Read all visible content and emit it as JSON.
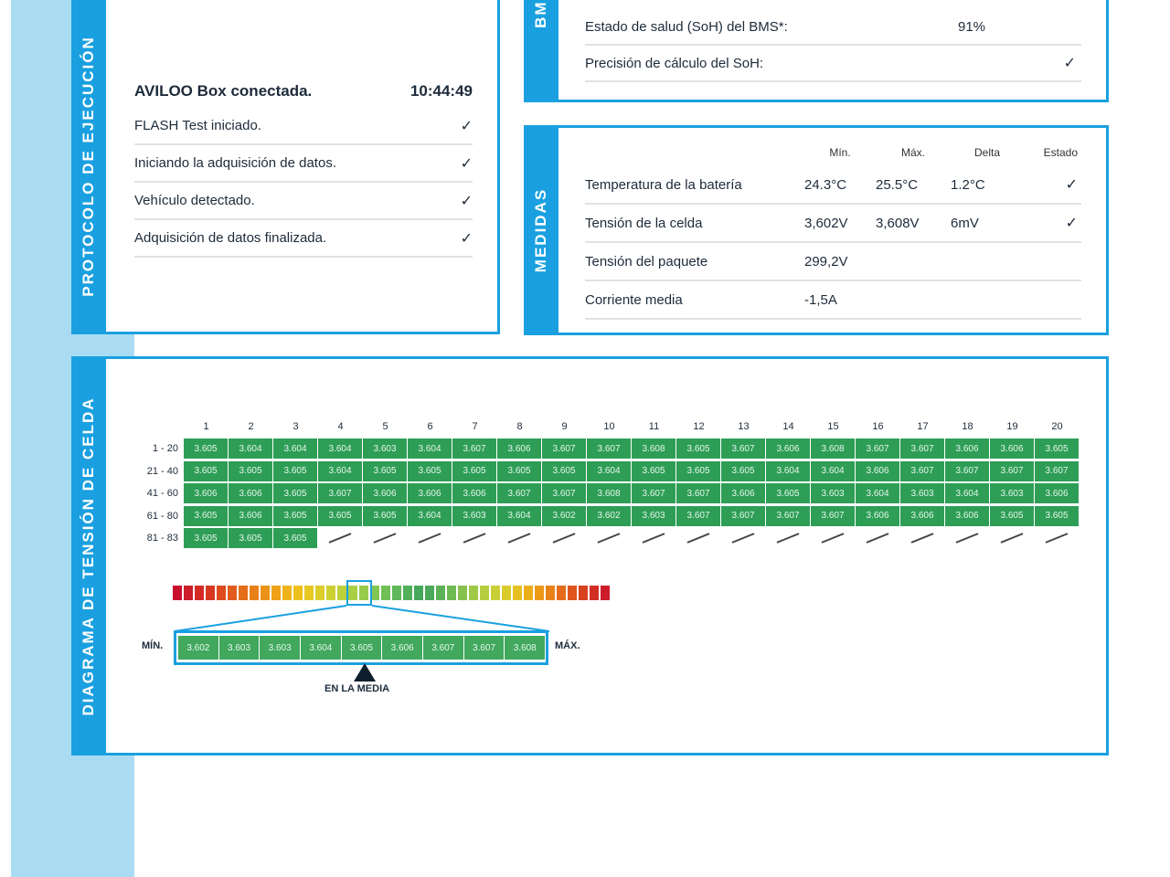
{
  "protocol": {
    "tab_label": "PROTOCOLO DE EJECUCIÓN",
    "header_label": "AVILOO Box conectada.",
    "header_time": "10:44:49",
    "steps": [
      {
        "label": "FLASH Test iniciado."
      },
      {
        "label": "Iniciando la adquisición de datos."
      },
      {
        "label": "Vehículo detectado."
      },
      {
        "label": "Adquisición de datos finalizada."
      }
    ]
  },
  "bms": {
    "tab_label": "BMS",
    "rows": [
      {
        "label": "Estado de salud (SoH) del BMS*:",
        "value": "91%",
        "check": false
      },
      {
        "label": "Precisión de cálculo del SoH:",
        "value": "",
        "check": true
      }
    ]
  },
  "medidas": {
    "tab_label": "MEDIDAS",
    "headers": {
      "min": "Mín.",
      "max": "Máx.",
      "delta": "Delta",
      "estado": "Estado"
    },
    "rows": [
      {
        "label": "Temperatura de la batería",
        "min": "24.3°C",
        "max": "25.5°C",
        "delta": "1.2°C",
        "check": true
      },
      {
        "label": "Tensión de la celda",
        "min": "3,602V",
        "max": "3,608V",
        "delta": "6mV",
        "check": true
      },
      {
        "label": "Tensión del paquete",
        "min": "299,2V",
        "max": "",
        "delta": "",
        "check": false
      },
      {
        "label": "Corriente media",
        "min": "-1,5A",
        "max": "",
        "delta": "",
        "check": false
      }
    ]
  },
  "diagram": {
    "tab_label": "DIAGRAMA DE TENSIÓN DE CELDA",
    "columns": [
      "1",
      "2",
      "3",
      "4",
      "5",
      "6",
      "7",
      "8",
      "9",
      "10",
      "11",
      "12",
      "13",
      "14",
      "15",
      "16",
      "17",
      "18",
      "19",
      "20"
    ],
    "rows": [
      {
        "label": "1 - 20",
        "cells": [
          "3.605",
          "3.604",
          "3.604",
          "3.604",
          "3.603",
          "3.604",
          "3.607",
          "3.606",
          "3.607",
          "3.607",
          "3.608",
          "3.605",
          "3.607",
          "3.606",
          "3.608",
          "3.607",
          "3.607",
          "3.606",
          "3.606",
          "3.605"
        ]
      },
      {
        "label": "21 - 40",
        "cells": [
          "3.605",
          "3.605",
          "3.605",
          "3.604",
          "3.605",
          "3.605",
          "3.605",
          "3.605",
          "3.605",
          "3.604",
          "3.605",
          "3.605",
          "3.605",
          "3.604",
          "3.604",
          "3.606",
          "3.607",
          "3.607",
          "3.607",
          "3.607"
        ]
      },
      {
        "label": "41 - 60",
        "cells": [
          "3.606",
          "3.606",
          "3.605",
          "3.607",
          "3.606",
          "3.606",
          "3.606",
          "3.607",
          "3.607",
          "3.608",
          "3.607",
          "3.607",
          "3.606",
          "3.605",
          "3.603",
          "3.604",
          "3.603",
          "3.604",
          "3.603",
          "3.606"
        ]
      },
      {
        "label": "61 - 80",
        "cells": [
          "3.605",
          "3.606",
          "3.605",
          "3.605",
          "3.605",
          "3.604",
          "3.603",
          "3.604",
          "3.602",
          "3.602",
          "3.603",
          "3.607",
          "3.607",
          "3.607",
          "3.607",
          "3.606",
          "3.606",
          "3.606",
          "3.605",
          "3.605"
        ]
      },
      {
        "label": "81 - 83",
        "cells": [
          "3.605",
          "3.605",
          "3.605"
        ]
      }
    ],
    "legend_values": [
      "3.602",
      "3.603",
      "3.603",
      "3.604",
      "3.605",
      "3.606",
      "3.607",
      "3.607",
      "3.608"
    ],
    "min_label": "MÍN.",
    "max_label": "MÁX.",
    "average_label": "EN LA MEDIA",
    "scale_colors": [
      "#c8102e",
      "#cc1d2a",
      "#d42a26",
      "#d83822",
      "#dd4a1e",
      "#e05c1c",
      "#e46e1a",
      "#e88018",
      "#eb9218",
      "#eda218",
      "#eeb21a",
      "#eec01c",
      "#e8c823",
      "#dccd2b",
      "#cdd034",
      "#bcd13c",
      "#a9cf44",
      "#96cb4c",
      "#83c652",
      "#70bf57",
      "#5fb85a",
      "#52b05b",
      "#47a85b",
      "#4ca85a",
      "#5cb257",
      "#6fba53",
      "#86c24d",
      "#9fc946",
      "#b5cd3f",
      "#c9cf36",
      "#dacb2c",
      "#e6c022",
      "#ebae1b",
      "#ec9918",
      "#e98218",
      "#e56c1a",
      "#df561d",
      "#d94221",
      "#d32e26",
      "#cc1c2b"
    ]
  }
}
